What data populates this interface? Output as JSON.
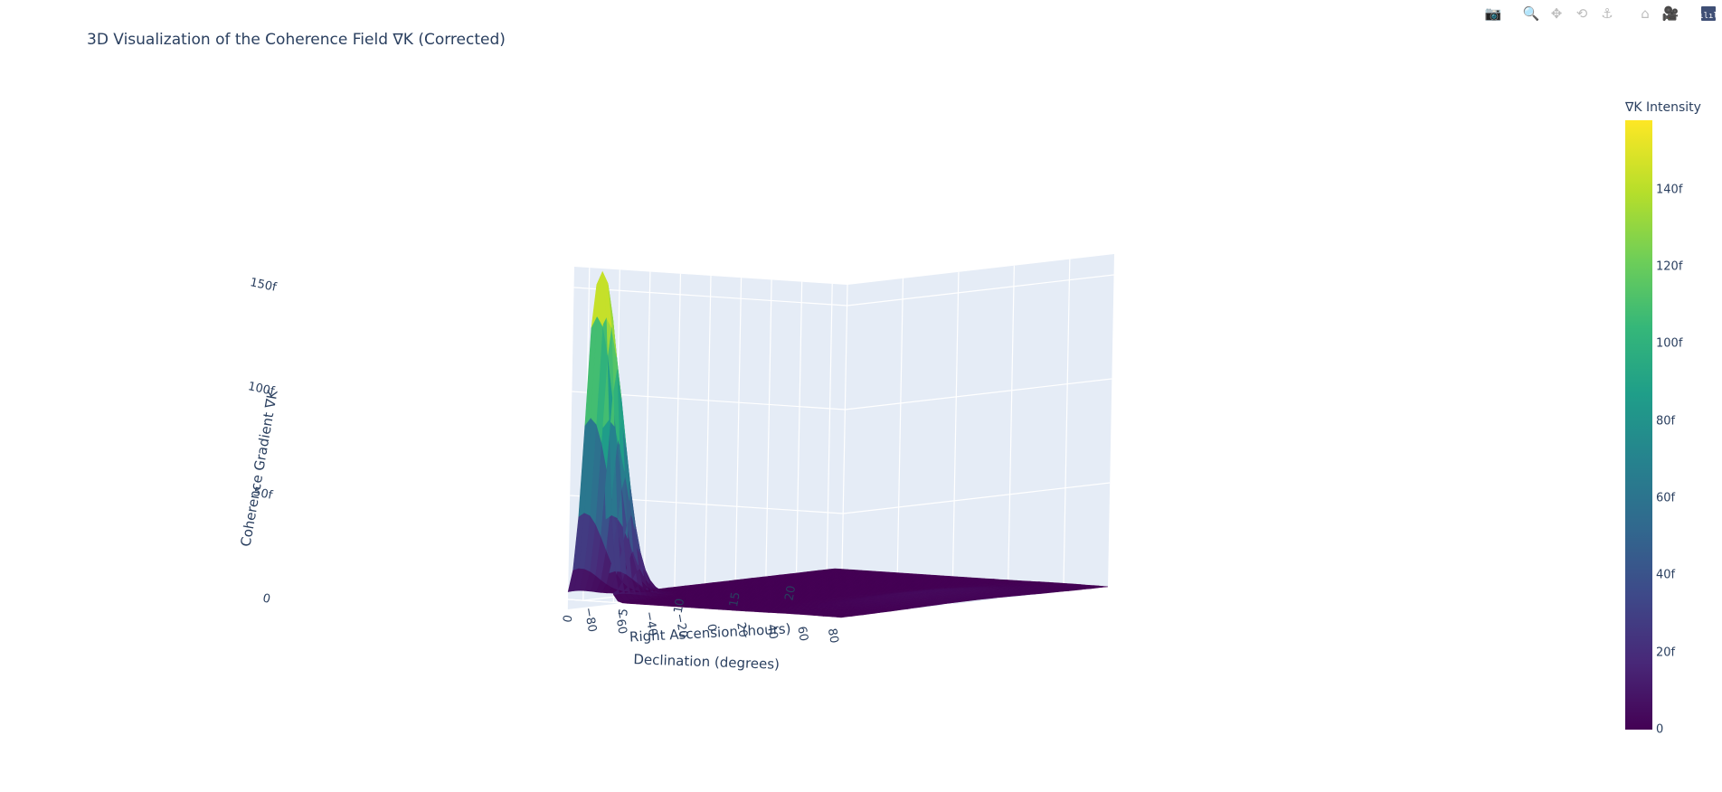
{
  "title": "3D Visualization of the Coherence Field ∇K (Corrected)",
  "modebar": {
    "items": [
      {
        "name": "camera-icon",
        "glyph": "📷"
      },
      {
        "name": "zoom-icon",
        "glyph": "🔍"
      },
      {
        "name": "pan-icon",
        "glyph": "✥"
      },
      {
        "name": "orbit-icon",
        "glyph": "⟲"
      },
      {
        "name": "turntable-icon",
        "glyph": "⚓"
      },
      {
        "name": "home-icon",
        "glyph": "⌂"
      },
      {
        "name": "reset-camera-icon",
        "glyph": "🎥"
      }
    ],
    "logo_glyph": "ılıl"
  },
  "colorbar": {
    "title": "∇K Intensity",
    "ticks": [
      {
        "label": "140f",
        "value": 140
      },
      {
        "label": "120f",
        "value": 120
      },
      {
        "label": "100f",
        "value": 100
      },
      {
        "label": "80f",
        "value": 80
      },
      {
        "label": "60f",
        "value": 60
      },
      {
        "label": "40f",
        "value": 40
      },
      {
        "label": "20f",
        "value": 20
      },
      {
        "label": "0",
        "value": 0
      }
    ],
    "range": [
      0,
      158
    ],
    "colorscale": "viridis"
  },
  "chart_data": {
    "type": "surface",
    "title": "3D Visualization of the Coherence Field ∇K (Corrected)",
    "xlabel": "Right Ascension (hours)",
    "ylabel": "Declination (degrees)",
    "zlabel": "Coherence Gradient ∇K",
    "x_ticks": [
      "0",
      "5",
      "10",
      "15",
      "20"
    ],
    "x_range": [
      0,
      24
    ],
    "y_ticks": [
      "−80",
      "−60",
      "−40",
      "−20",
      "0",
      "20",
      "40",
      "60",
      "80"
    ],
    "y_range": [
      -90,
      90
    ],
    "z_ticks": [
      "0",
      "50f",
      "100f",
      "150f"
    ],
    "z_range": [
      0,
      160
    ],
    "colorscale": "viridis",
    "peak": {
      "ra_hours": 0.5,
      "dec_degrees": -75,
      "value": 158
    },
    "secondary_bump": {
      "ra_hours": 12,
      "dec_degrees": 60,
      "value": 4
    },
    "baseline": 0
  }
}
